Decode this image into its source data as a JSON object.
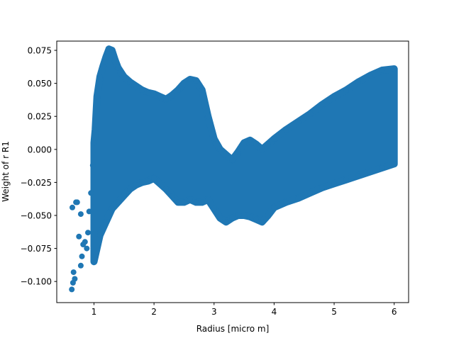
{
  "chart_data": {
    "type": "scatter",
    "title": "",
    "xlabel": "Radius [micro m]",
    "ylabel": "Weight of  r  R1",
    "xlim": [
      0.38,
      6.24
    ],
    "ylim": [
      -0.116,
      0.082
    ],
    "xticks": [
      1,
      2,
      3,
      4,
      5,
      6
    ],
    "xtick_labels": [
      "1",
      "2",
      "3",
      "4",
      "5",
      "6"
    ],
    "yticks": [
      -0.1,
      -0.075,
      -0.05,
      -0.025,
      0.0,
      0.025,
      0.05,
      0.075
    ],
    "ytick_labels": [
      "−0.100",
      "−0.075",
      "−0.050",
      "−0.025",
      "0.000",
      "0.025",
      "0.050",
      "0.075"
    ],
    "grid": false,
    "legend": "none",
    "marker_color": "#1f77b4",
    "series": [
      {
        "x": [
          0.65,
          0.63,
          0.68,
          0.7,
          0.72,
          0.66,
          0.64,
          0.78,
          0.8,
          0.82,
          0.85,
          0.75,
          0.78,
          0.88,
          0.9,
          0.92,
          0.95,
          0.98,
          1.0,
          1.02,
          1.05,
          1.1,
          1.15,
          1.2,
          1.25,
          1.3,
          1.35,
          1.4,
          1.5,
          1.6,
          1.7,
          1.8,
          1.9,
          2.0,
          2.1,
          2.2,
          2.3,
          2.4,
          2.5,
          2.6,
          2.7,
          2.8,
          2.9,
          3.0,
          3.1,
          3.2,
          3.3,
          3.4,
          3.5,
          3.6,
          3.7,
          3.8,
          3.9,
          4.0,
          4.2,
          4.4,
          4.6,
          4.8,
          5.0,
          5.2,
          5.4,
          5.6,
          5.8,
          6.0,
          1.0,
          1.1,
          1.2,
          1.3,
          1.4,
          1.5,
          1.6,
          1.7,
          1.8,
          1.9,
          2.0,
          2.1,
          2.2,
          2.3,
          2.4,
          2.5,
          2.6,
          2.7,
          2.8,
          2.9,
          3.0,
          3.1,
          3.2,
          3.3,
          3.4,
          3.5,
          3.6,
          3.7,
          3.8,
          3.9,
          4.0,
          4.2,
          4.4,
          4.6,
          4.8,
          5.0,
          5.2,
          5.4,
          5.6,
          5.8,
          6.0
        ],
        "y": [
          -0.101,
          -0.106,
          -0.098,
          -0.04,
          -0.04,
          -0.093,
          -0.044,
          -0.088,
          -0.081,
          -0.072,
          -0.07,
          -0.066,
          -0.049,
          -0.075,
          -0.063,
          -0.047,
          -0.033,
          -0.012,
          0.005,
          0.015,
          0.04,
          0.055,
          0.063,
          0.07,
          0.076,
          0.075,
          0.068,
          0.062,
          0.055,
          0.051,
          0.048,
          0.045,
          0.043,
          0.042,
          0.04,
          0.038,
          0.041,
          0.045,
          0.05,
          0.053,
          0.052,
          0.045,
          0.025,
          0.008,
          0.0,
          -0.004,
          -0.008,
          -0.002,
          0.005,
          0.007,
          0.004,
          0.0,
          0.004,
          0.008,
          0.015,
          0.021,
          0.027,
          0.034,
          0.04,
          0.045,
          0.051,
          0.056,
          0.06,
          0.061,
          -0.085,
          -0.065,
          -0.055,
          -0.045,
          -0.04,
          -0.035,
          -0.03,
          -0.027,
          -0.025,
          -0.024,
          -0.022,
          -0.026,
          -0.03,
          -0.035,
          -0.04,
          -0.04,
          -0.038,
          -0.04,
          -0.04,
          -0.038,
          -0.045,
          -0.052,
          -0.055,
          -0.052,
          -0.05,
          -0.05,
          -0.051,
          -0.053,
          -0.055,
          -0.05,
          -0.044,
          -0.04,
          -0.037,
          -0.033,
          -0.029,
          -0.026,
          -0.023,
          -0.02,
          -0.017,
          -0.014,
          -0.011
        ]
      }
    ]
  }
}
